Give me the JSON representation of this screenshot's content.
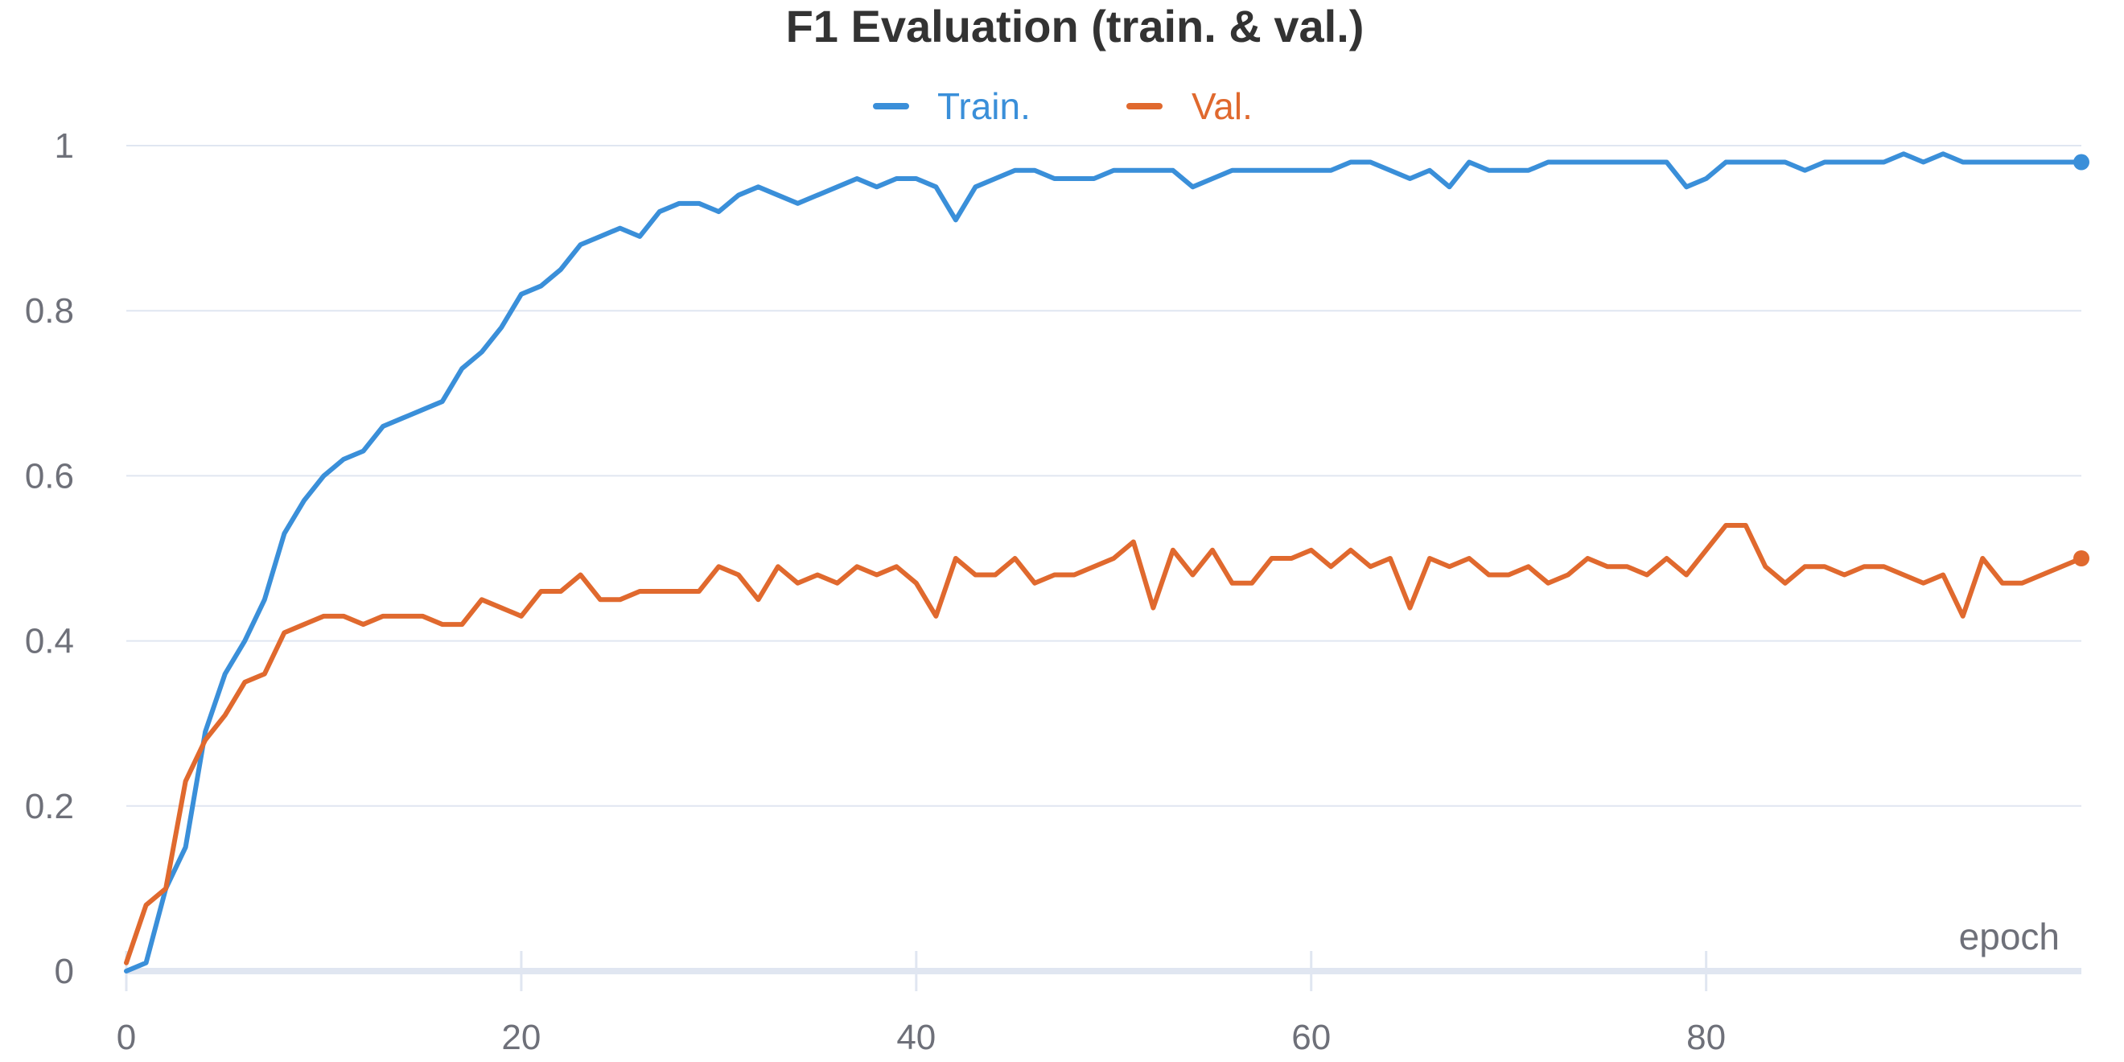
{
  "chart_data": {
    "type": "line",
    "title": "F1 Evaluation (train. & val.)",
    "xlabel": "epoch",
    "ylabel": "",
    "xlim": [
      0,
      99
    ],
    "ylim": [
      0,
      1
    ],
    "x_ticks": [
      0,
      20,
      40,
      60,
      80
    ],
    "y_ticks": [
      0,
      0.2,
      0.4,
      0.6,
      0.8,
      1
    ],
    "grid": true,
    "legend_position": "top-center",
    "series": [
      {
        "name": "Train.",
        "color": "#3a8fd9",
        "values": [
          0.0,
          0.01,
          0.1,
          0.15,
          0.29,
          0.36,
          0.4,
          0.45,
          0.53,
          0.57,
          0.6,
          0.62,
          0.63,
          0.66,
          0.67,
          0.68,
          0.69,
          0.73,
          0.75,
          0.78,
          0.82,
          0.83,
          0.85,
          0.88,
          0.89,
          0.9,
          0.89,
          0.92,
          0.93,
          0.93,
          0.92,
          0.94,
          0.95,
          0.94,
          0.93,
          0.94,
          0.95,
          0.96,
          0.95,
          0.96,
          0.96,
          0.95,
          0.91,
          0.95,
          0.96,
          0.97,
          0.97,
          0.96,
          0.96,
          0.96,
          0.97,
          0.97,
          0.97,
          0.97,
          0.95,
          0.96,
          0.97,
          0.97,
          0.97,
          0.97,
          0.97,
          0.97,
          0.98,
          0.98,
          0.97,
          0.96,
          0.97,
          0.95,
          0.98,
          0.97,
          0.97,
          0.97,
          0.98,
          0.98,
          0.98,
          0.98,
          0.98,
          0.98,
          0.98,
          0.95,
          0.96,
          0.98,
          0.98,
          0.98,
          0.98,
          0.97,
          0.98,
          0.98,
          0.98,
          0.98,
          0.99,
          0.98,
          0.99,
          0.98,
          0.98,
          0.98,
          0.98,
          0.98,
          0.98,
          0.98
        ]
      },
      {
        "name": "Val.",
        "color": "#e0692e",
        "values": [
          0.01,
          0.08,
          0.1,
          0.23,
          0.28,
          0.31,
          0.35,
          0.36,
          0.41,
          0.42,
          0.43,
          0.43,
          0.42,
          0.43,
          0.43,
          0.43,
          0.42,
          0.42,
          0.45,
          0.44,
          0.43,
          0.46,
          0.46,
          0.48,
          0.45,
          0.45,
          0.46,
          0.46,
          0.46,
          0.46,
          0.49,
          0.48,
          0.45,
          0.49,
          0.47,
          0.48,
          0.47,
          0.49,
          0.48,
          0.49,
          0.47,
          0.43,
          0.5,
          0.48,
          0.48,
          0.5,
          0.47,
          0.48,
          0.48,
          0.49,
          0.5,
          0.52,
          0.44,
          0.51,
          0.48,
          0.51,
          0.47,
          0.47,
          0.5,
          0.5,
          0.51,
          0.49,
          0.51,
          0.49,
          0.5,
          0.44,
          0.5,
          0.49,
          0.5,
          0.48,
          0.48,
          0.49,
          0.47,
          0.48,
          0.5,
          0.49,
          0.49,
          0.48,
          0.5,
          0.48,
          0.51,
          0.54,
          0.54,
          0.49,
          0.47,
          0.49,
          0.49,
          0.48,
          0.49,
          0.49,
          0.48,
          0.47,
          0.48,
          0.43,
          0.5,
          0.47,
          0.47,
          0.48,
          0.49,
          0.5
        ]
      }
    ]
  }
}
